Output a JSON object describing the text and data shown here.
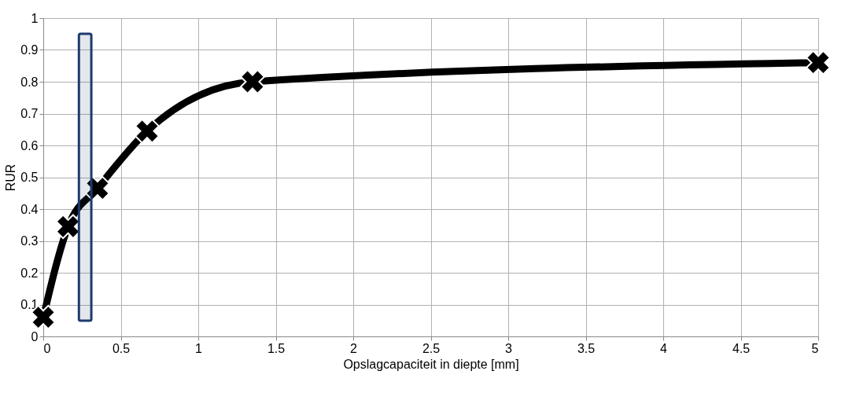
{
  "chart_data": {
    "type": "line",
    "xlabel": "Opslagcapaciteit in diepte [mm]",
    "ylabel": "RUR",
    "x": [
      0,
      0.16,
      0.35,
      0.67,
      1.35,
      5
    ],
    "series": [
      {
        "color": "#000000",
        "values": [
          0.06,
          0.345,
          0.465,
          0.645,
          0.8,
          0.86
        ]
      }
    ],
    "xlim": [
      0,
      5
    ],
    "xticks": [
      0,
      0.5,
      1,
      1.5,
      2,
      2.5,
      3,
      3.5,
      4,
      4.5,
      5
    ],
    "ylim": [
      0,
      1
    ],
    "yticks": [
      0,
      0.1,
      0.2,
      0.3,
      0.4,
      0.5,
      0.6,
      0.7,
      0.8,
      0.9,
      1
    ],
    "bands": [
      {
        "axis": "x",
        "from": 0.23,
        "to": 0.31,
        "color": "#1f3a6e"
      }
    ],
    "grid": true,
    "marker": "cross",
    "line_style": "solid"
  }
}
